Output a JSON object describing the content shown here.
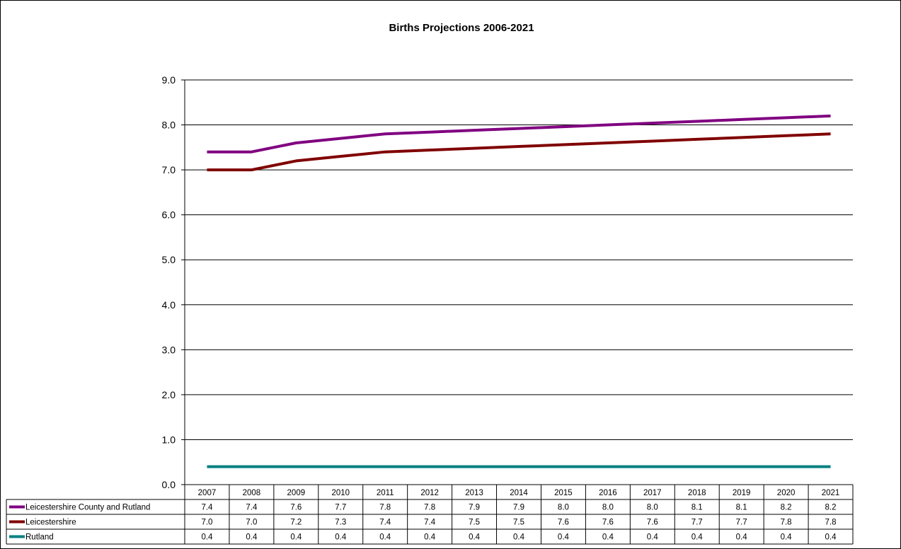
{
  "chart_data": {
    "type": "line",
    "title": "Births Projections 2006-2021",
    "xlabel": "",
    "ylabel": "",
    "ylim": [
      0,
      9
    ],
    "y_ticks": [
      "0.0",
      "1.0",
      "2.0",
      "3.0",
      "4.0",
      "5.0",
      "6.0",
      "7.0",
      "8.0",
      "9.0"
    ],
    "grid": true,
    "legend": "data-table",
    "categories": [
      "2007",
      "2008",
      "2009",
      "2010",
      "2011",
      "2012",
      "2013",
      "2014",
      "2015",
      "2016",
      "2017",
      "2018",
      "2019",
      "2020",
      "2021"
    ],
    "series": [
      {
        "name": "Leicestershire County and Rutland",
        "color": "#800080",
        "values": [
          7.4,
          7.4,
          7.6,
          7.7,
          7.8,
          7.8,
          7.9,
          7.9,
          8.0,
          8.0,
          8.0,
          8.1,
          8.1,
          8.2,
          8.2
        ],
        "labels": [
          "7.4",
          "7.4",
          "7.6",
          "7.7",
          "7.8",
          "7.8",
          "7.9",
          "7.9",
          "8.0",
          "8.0",
          "8.0",
          "8.1",
          "8.1",
          "8.2",
          "8.2"
        ],
        "plot": [
          7.4,
          7.4,
          7.6,
          7.7,
          7.8,
          7.84,
          7.88,
          7.92,
          7.96,
          8.0,
          8.04,
          8.08,
          8.12,
          8.16,
          8.2
        ]
      },
      {
        "name": "Leicestershire",
        "color": "#800000",
        "values": [
          7.0,
          7.0,
          7.2,
          7.3,
          7.4,
          7.4,
          7.5,
          7.5,
          7.6,
          7.6,
          7.6,
          7.7,
          7.7,
          7.8,
          7.8
        ],
        "labels": [
          "7.0",
          "7.0",
          "7.2",
          "7.3",
          "7.4",
          "7.4",
          "7.5",
          "7.5",
          "7.6",
          "7.6",
          "7.6",
          "7.7",
          "7.7",
          "7.8",
          "7.8"
        ],
        "plot": [
          7.0,
          7.0,
          7.2,
          7.3,
          7.4,
          7.44,
          7.48,
          7.52,
          7.56,
          7.6,
          7.64,
          7.68,
          7.72,
          7.76,
          7.8
        ]
      },
      {
        "name": "Rutland",
        "color": "#008080",
        "values": [
          0.4,
          0.4,
          0.4,
          0.4,
          0.4,
          0.4,
          0.4,
          0.4,
          0.4,
          0.4,
          0.4,
          0.4,
          0.4,
          0.4,
          0.4
        ],
        "labels": [
          "0.4",
          "0.4",
          "0.4",
          "0.4",
          "0.4",
          "0.4",
          "0.4",
          "0.4",
          "0.4",
          "0.4",
          "0.4",
          "0.4",
          "0.4",
          "0.4",
          "0.4"
        ],
        "plot": [
          0.4,
          0.4,
          0.4,
          0.4,
          0.4,
          0.4,
          0.4,
          0.4,
          0.4,
          0.4,
          0.4,
          0.4,
          0.4,
          0.4,
          0.4
        ]
      }
    ]
  }
}
